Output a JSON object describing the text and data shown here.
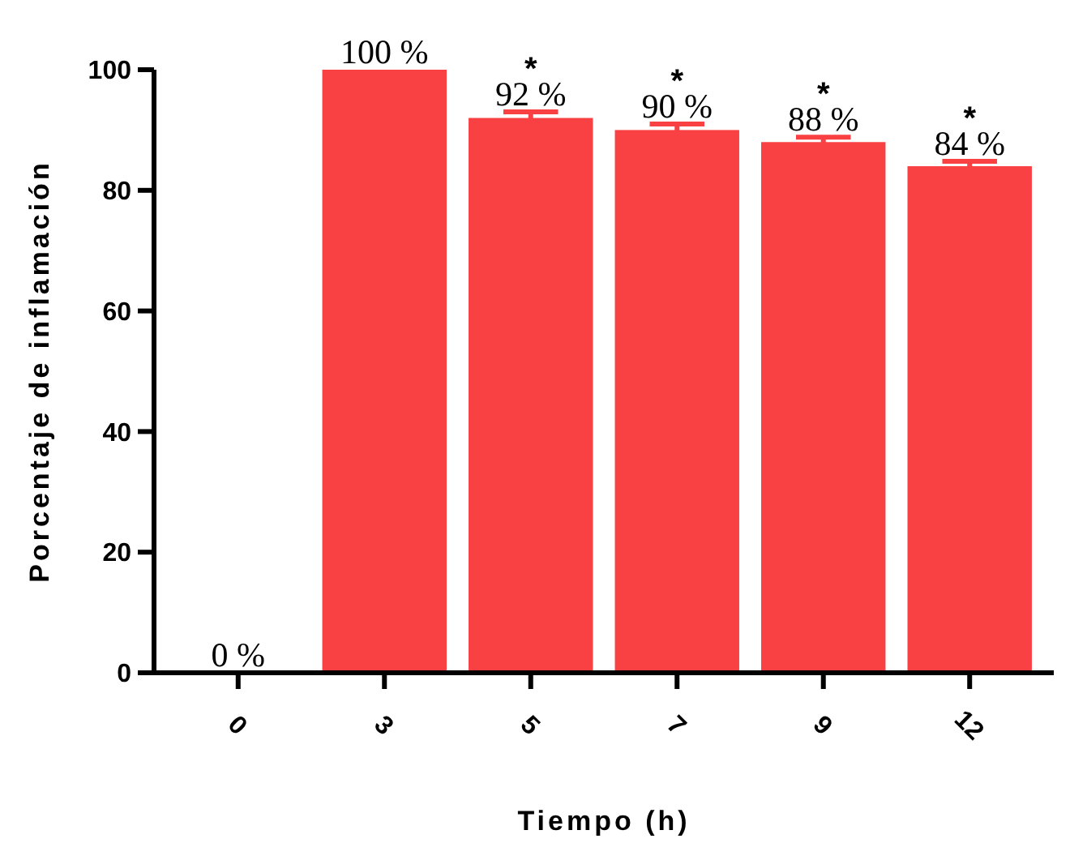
{
  "chart_data": {
    "type": "bar",
    "xlabel": "Tiempo (h)",
    "ylabel": "Porcentaje de inflamación",
    "categories": [
      "0",
      "3",
      "5",
      "7",
      "9",
      "12"
    ],
    "values": [
      0,
      100,
      92,
      90,
      88,
      84
    ],
    "errors": [
      null,
      null,
      1,
      1,
      0.8,
      0.8
    ],
    "value_labels": [
      "0 %",
      "100 %",
      "92 %",
      "90 %",
      "88 %",
      "84 %"
    ],
    "color": "#f94144",
    "ylim": [
      0,
      100
    ],
    "yticks": [
      0,
      20,
      40,
      60,
      80,
      100
    ],
    "grid": false,
    "annotations": [
      {
        "text": "*",
        "x": "5",
        "y": 92
      },
      {
        "text": "*",
        "x": "7",
        "y": 90
      },
      {
        "text": "*",
        "x": "9",
        "y": 88
      },
      {
        "text": "*",
        "x": "12",
        "y": 84
      }
    ]
  }
}
